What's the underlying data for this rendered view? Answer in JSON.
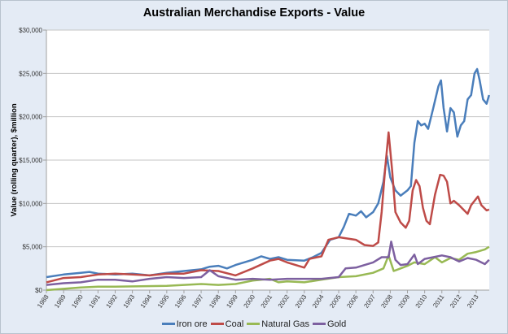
{
  "chart_data": {
    "type": "line",
    "title": "Australian Merchandise Exports - Value",
    "xlabel": "",
    "ylabel": "Value (rolling quarter), $million",
    "xlim": [
      1988,
      2013.75
    ],
    "ylim": [
      0,
      30000
    ],
    "x_tick_labels": [
      "1988",
      "1989",
      "1990",
      "1991",
      "1992",
      "1993",
      "1994",
      "1995",
      "1996",
      "1997",
      "1998",
      "1999",
      "2000",
      "2001",
      "2002",
      "2003",
      "2004",
      "2005",
      "2006",
      "2007",
      "2008",
      "2009",
      "2010",
      "2011",
      "2012",
      "2013"
    ],
    "y_ticks": [
      0,
      5000,
      10000,
      15000,
      20000,
      25000,
      30000
    ],
    "y_tick_labels": [
      "$0",
      "$5,000",
      "$10,000",
      "$15,000",
      "$20,000",
      "$25,000",
      "$30,000"
    ],
    "grid": "horizontal",
    "legend_position": "bottom",
    "series": [
      {
        "name": "Iron ore",
        "color": "#4a7ebb",
        "x": [
          1988,
          1989,
          1990,
          1990.5,
          1991,
          1992,
          1993,
          1994,
          1995,
          1996,
          1997,
          1997.5,
          1998,
          1998.5,
          1999,
          2000,
          2000.5,
          2001,
          2001.5,
          2002,
          2003,
          2003.5,
          2004,
          2004.5,
          2005,
          2005.3,
          2005.6,
          2006,
          2006.3,
          2006.6,
          2007,
          2007.3,
          2007.6,
          2007.8,
          2008,
          2008.3,
          2008.6,
          2009,
          2009.2,
          2009.4,
          2009.6,
          2009.8,
          2010,
          2010.2,
          2010.5,
          2010.8,
          2010.95,
          2011.1,
          2011.3,
          2011.5,
          2011.7,
          2011.9,
          2012.1,
          2012.3,
          2012.5,
          2012.7,
          2012.9,
          2013.05,
          2013.2,
          2013.4,
          2013.6,
          2013.75
        ],
        "y": [
          1500,
          1800,
          2000,
          2100,
          1900,
          1800,
          1900,
          1700,
          2000,
          2200,
          2400,
          2700,
          2800,
          2500,
          2900,
          3500,
          3900,
          3600,
          3800,
          3500,
          3400,
          3800,
          4300,
          5800,
          6100,
          7300,
          8800,
          8600,
          9100,
          8400,
          9000,
          10000,
          12500,
          15500,
          13000,
          11500,
          10900,
          11500,
          12000,
          17000,
          19500,
          19000,
          19200,
          18600,
          21000,
          23500,
          24200,
          21000,
          18300,
          21000,
          20500,
          17700,
          19000,
          19500,
          22000,
          22500,
          25000,
          25500,
          24200,
          22000,
          21500,
          22500
        ]
      },
      {
        "name": "Coal",
        "color": "#be4b48",
        "x": [
          1988,
          1989,
          1990,
          1991,
          1992,
          1993,
          1994,
          1995,
          1996,
          1997,
          1998,
          1999,
          2000,
          2001,
          2001.5,
          2002,
          2003,
          2003.3,
          2004,
          2004.4,
          2005,
          2006,
          2006.5,
          2007,
          2007.3,
          2007.5,
          2007.7,
          2007.9,
          2008.1,
          2008.3,
          2008.6,
          2008.9,
          2009.1,
          2009.3,
          2009.5,
          2009.7,
          2009.9,
          2010.1,
          2010.3,
          2010.6,
          2010.9,
          2011.1,
          2011.3,
          2011.5,
          2011.7,
          2012,
          2012.3,
          2012.5,
          2012.7,
          2012.9,
          2013.1,
          2013.3,
          2013.6,
          2013.75
        ],
        "y": [
          900,
          1400,
          1500,
          1800,
          1900,
          1800,
          1700,
          1900,
          1900,
          2300,
          2200,
          1700,
          2500,
          3400,
          3600,
          3200,
          2600,
          3600,
          3900,
          5800,
          6100,
          5800,
          5200,
          5100,
          5500,
          9000,
          14000,
          18200,
          14000,
          9000,
          7800,
          7200,
          8000,
          11500,
          12700,
          12000,
          9500,
          8000,
          7600,
          11000,
          13300,
          13200,
          12500,
          10000,
          10300,
          9800,
          9200,
          8800,
          9800,
          10300,
          10800,
          9800,
          9200,
          9300
        ]
      },
      {
        "name": "Natural Gas",
        "color": "#98b954",
        "x": [
          1988,
          1990,
          1991,
          1992,
          1995,
          1997,
          1998,
          1999,
          2000,
          2001,
          2001.5,
          2002,
          2003,
          2004,
          2005,
          2006,
          2007,
          2007.6,
          2007.9,
          2008.2,
          2008.6,
          2009,
          2009.4,
          2010,
          2010.6,
          2011,
          2011.5,
          2012,
          2012.5,
          2013,
          2013.5,
          2013.75
        ],
        "y": [
          0,
          300,
          400,
          400,
          500,
          700,
          600,
          700,
          1100,
          1300,
          900,
          1000,
          900,
          1200,
          1500,
          1600,
          2000,
          2500,
          4000,
          2200,
          2500,
          2800,
          3200,
          3000,
          3800,
          3200,
          3700,
          3500,
          4200,
          4400,
          4700,
          5000
        ]
      },
      {
        "name": "Gold",
        "color": "#7d60a0",
        "x": [
          1988,
          1989,
          1990,
          1991,
          1992,
          1993,
          1994,
          1995,
          1996,
          1997,
          1997.5,
          1998,
          1999,
          2000,
          2001,
          2002,
          2003,
          2004,
          2005,
          2005.4,
          2006,
          2007,
          2007.5,
          2007.9,
          2008.05,
          2008.3,
          2008.6,
          2009,
          2009.4,
          2009.6,
          2010,
          2010.5,
          2011,
          2011.5,
          2012,
          2012.5,
          2013,
          2013.5,
          2013.75
        ],
        "y": [
          600,
          800,
          900,
          1200,
          1200,
          1000,
          1300,
          1500,
          1400,
          1500,
          2300,
          1600,
          1200,
          1300,
          1200,
          1300,
          1300,
          1300,
          1500,
          2500,
          2600,
          3200,
          3800,
          3800,
          5600,
          3500,
          2900,
          3000,
          4100,
          3000,
          3600,
          3800,
          4000,
          3800,
          3300,
          3700,
          3500,
          3000,
          3500
        ]
      }
    ]
  }
}
